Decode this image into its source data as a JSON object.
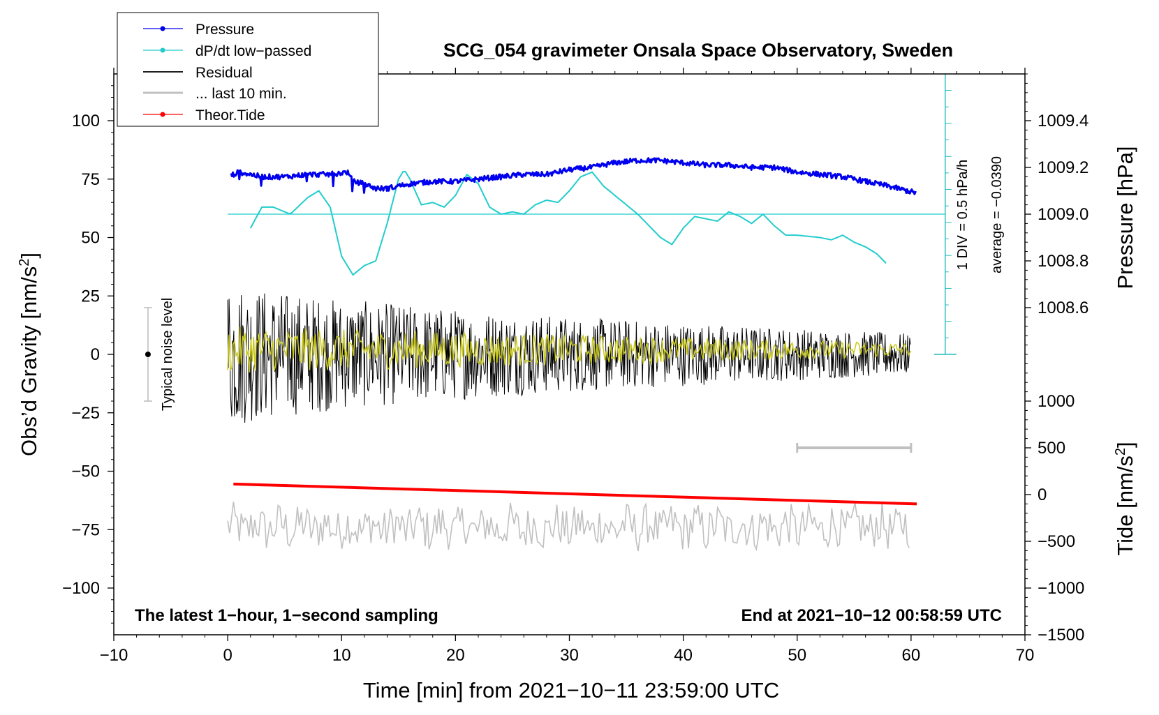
{
  "chart_data": {
    "type": "line",
    "title": "SCG_054 gravimeter Onsala Space Observatory, Sweden",
    "xlabel": "Time [min] from 2021−10−11 23:59:00 UTC",
    "ylabel_left": "Obs’d Gravity [nm/s",
    "ylabel_left_sup": "2",
    "ylabel_left_close": "]",
    "ylabel_pressure": "Pressure [hPa]",
    "ylabel_tide": "Tide [nm/s",
    "ylabel_tide_sup": "2",
    "ylabel_tide_close": "]",
    "xlim": [
      -10,
      70
    ],
    "ylim_left": [
      -120,
      120
    ],
    "x_ticks": [
      -10,
      0,
      10,
      20,
      30,
      40,
      50,
      60,
      70
    ],
    "x_tick_labels": [
      "−10",
      "0",
      "10",
      "20",
      "30",
      "40",
      "50",
      "60",
      "70"
    ],
    "y_left_ticks": [
      100,
      75,
      50,
      25,
      0,
      -25,
      -50,
      -75,
      -100
    ],
    "y_left_tick_labels": [
      "100",
      "75",
      "50",
      "25",
      "0",
      "−25",
      "−50",
      "−75",
      "−100"
    ],
    "pressure_ticks": [
      1009.4,
      1009.2,
      1009.0,
      1008.8,
      1008.6
    ],
    "pressure_tick_labels": [
      "1009.4",
      "1009.2",
      "1009.0",
      "1008.8",
      "1008.6"
    ],
    "pressure_left_equiv": [
      100,
      80,
      60,
      40,
      20
    ],
    "tide_ticks": [
      1000,
      500,
      0,
      -500,
      -1000,
      -1500
    ],
    "tide_tick_labels": [
      "1000",
      "500",
      "0",
      "−500",
      "−1000",
      "−1500"
    ],
    "tide_left_equiv": [
      -20,
      -40,
      -60,
      -80,
      -100,
      -120
    ],
    "annotations": {
      "bottom_left": "The latest 1−hour, 1−second sampling",
      "bottom_right": "End at 2021−10−12 00:58:59 UTC",
      "noise": "Typical noise level",
      "div_scale": "1 DIV = 0.5 hPa/h",
      "average": "average = −0.0390"
    },
    "legend": {
      "position": "top-left",
      "entries": [
        {
          "label": "Pressure",
          "color": "#0000ee",
          "marker": true
        },
        {
          "label": "dP/dt low−passed",
          "color": "#22cccc",
          "marker": true
        },
        {
          "label": "Residual",
          "color": "#000000",
          "marker": false
        },
        {
          "label": "... last 10 min.",
          "color": "#c0c0c0",
          "marker": false
        },
        {
          "label": "Theor.Tide",
          "color": "#ff0000",
          "marker": true
        }
      ]
    },
    "series": [
      {
        "name": "Pressure",
        "color": "#0000ee",
        "unit": "gravity-axis equivalent",
        "x": [
          0,
          1,
          2,
          3,
          5,
          7,
          9,
          10.5,
          11,
          12,
          13,
          14,
          15,
          16,
          18,
          20,
          22,
          24,
          26,
          28,
          30,
          32,
          34,
          36,
          38,
          40,
          42,
          44,
          46,
          48,
          50,
          52,
          54,
          56,
          58,
          60.5
        ],
        "y": [
          76,
          78,
          77,
          76,
          76,
          77,
          77,
          78,
          74,
          73,
          71,
          71,
          72,
          73,
          74,
          74,
          75,
          76,
          77,
          77,
          79,
          80,
          82,
          83,
          83,
          82,
          81,
          81,
          80,
          80,
          78,
          77,
          76,
          74,
          72,
          69
        ]
      },
      {
        "name": "dP/dt low-passed",
        "color": "#22cccc",
        "unit": "gravity-axis equivalent",
        "x": [
          2,
          3,
          4,
          5.5,
          7,
          8,
          9,
          10,
          11,
          12,
          13,
          14,
          15,
          15.5,
          16,
          17,
          18,
          19,
          20,
          21,
          22,
          23,
          24,
          25,
          26,
          27,
          28,
          29,
          30,
          31,
          32,
          33,
          34,
          35,
          36,
          37,
          38,
          39,
          40,
          41,
          42,
          43,
          44,
          45,
          46,
          47,
          48,
          49,
          50,
          52,
          53,
          54,
          55,
          56,
          57,
          58
        ],
        "y": [
          54,
          63,
          63,
          60,
          67,
          70,
          63,
          42,
          34,
          38,
          40,
          56,
          75,
          79,
          75,
          64,
          65,
          63,
          68,
          77,
          73,
          63,
          60,
          61,
          60,
          64,
          66,
          65,
          70,
          76,
          78,
          72,
          68,
          64,
          60,
          55,
          50,
          47,
          54,
          59,
          58,
          57,
          61,
          59,
          56,
          60,
          55,
          51,
          51,
          50,
          49,
          51,
          48,
          46,
          43,
          38
        ]
      },
      {
        "name": "Residual",
        "color": "#000000",
        "noise_amplitude_start": 34,
        "noise_amplitude_end": 9,
        "x_range": [
          0,
          60
        ]
      },
      {
        "name": "Residual (smoothed)",
        "color": "#c8c81e",
        "noise_amplitude_start": 10,
        "noise_amplitude_end": 3,
        "x_range": [
          0,
          60
        ]
      },
      {
        "name": "Theor.Tide",
        "color": "#ff0000",
        "unit": "gravity-axis equivalent",
        "x": [
          0.5,
          60.5
        ],
        "y": [
          -55.5,
          -64
        ]
      },
      {
        "name": "... last 10 min.",
        "color": "#c0c0c0",
        "center": -74,
        "amplitude": 9,
        "x_range": [
          0,
          60
        ]
      }
    ],
    "noise_level": {
      "x": -7,
      "y": 0,
      "low": -20,
      "high": 20
    },
    "last10_bar": {
      "from": 50,
      "to": 60,
      "y": -40
    },
    "dpdt_scale": {
      "x": 63,
      "from": 0,
      "to": 120,
      "baseline": 60,
      "divisions": 17
    }
  }
}
